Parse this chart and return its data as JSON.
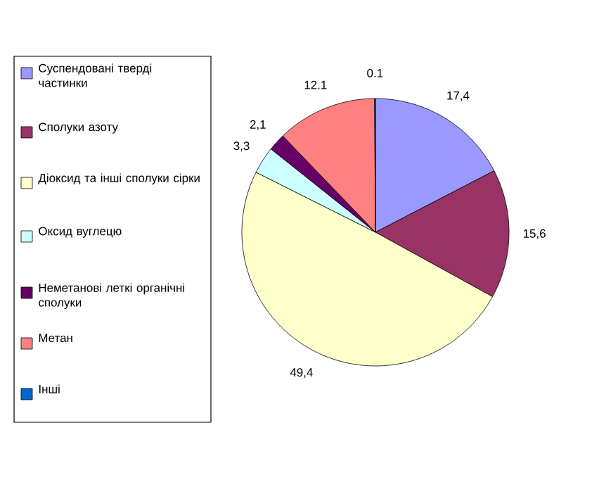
{
  "chart_data": {
    "type": "pie",
    "categories": [
      "Суспендовані тверді частинки",
      "Сполуки азоту",
      "Діоксид та інші сполуки сірки",
      "Оксид вуглецю",
      "Неметанові леткі органічні сполуки",
      "Метан",
      "Інші"
    ],
    "values": [
      17.4,
      15.6,
      49.4,
      3.3,
      2.1,
      12.1,
      0.1
    ],
    "value_labels": [
      "17,4",
      "15,6",
      "49,4",
      "3,3",
      "2,1",
      "12.1",
      "0.1"
    ],
    "colors": [
      "#9999ff",
      "#993366",
      "#ffffcc",
      "#ccffff",
      "#660066",
      "#ff8080",
      "#0066cc"
    ],
    "legend": "left"
  }
}
